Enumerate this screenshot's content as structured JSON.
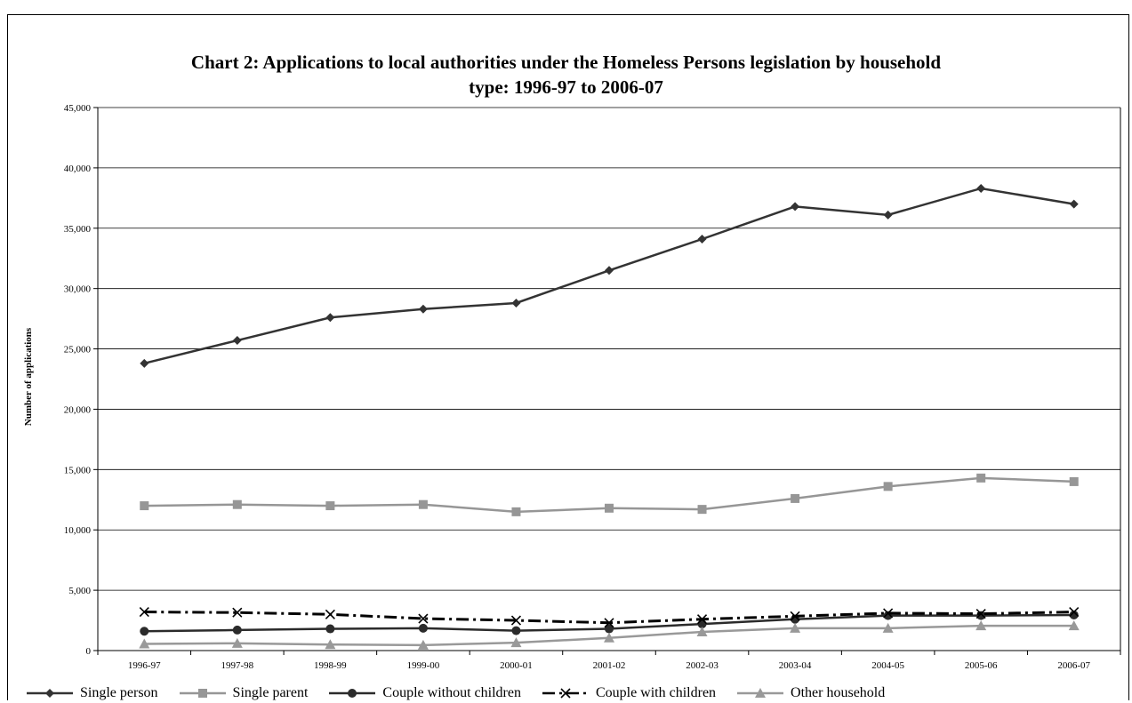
{
  "chart_data": {
    "type": "line",
    "title_line1": "Chart 2: Applications to local authorities under the Homeless Persons legislation by household",
    "title_line2": "type: 1996-97 to 2006-07",
    "xlabel": "",
    "ylabel": "Number of applications",
    "ylim": [
      0,
      45000
    ],
    "yticks": [
      0,
      5000,
      10000,
      15000,
      20000,
      25000,
      30000,
      35000,
      40000,
      45000
    ],
    "ytick_labels": [
      "0",
      "5,000",
      "10,000",
      "15,000",
      "20,000",
      "25,000",
      "30,000",
      "35,000",
      "40,000",
      "45,000"
    ],
    "grid": true,
    "legend_position": "bottom",
    "categories": [
      "1996-97",
      "1997-98",
      "1998-99",
      "1999-00",
      "2000-01",
      "2001-02",
      "2002-03",
      "2003-04",
      "2004-05",
      "2005-06",
      "2006-07"
    ],
    "series": [
      {
        "name": "Single person",
        "color": "#333333",
        "marker": "diamond",
        "dash": "solid",
        "values": [
          23800,
          25700,
          27600,
          28300,
          28800,
          31500,
          34100,
          36800,
          36100,
          38300,
          37000
        ]
      },
      {
        "name": "Single parent",
        "color": "#969696",
        "marker": "square",
        "dash": "solid",
        "values": [
          12000,
          12100,
          12000,
          12100,
          11500,
          11800,
          11700,
          12600,
          13600,
          14300,
          14000
        ]
      },
      {
        "name": "Couple without children",
        "color": "#2b2b2b",
        "marker": "circle",
        "dash": "solid",
        "values": [
          1600,
          1700,
          1800,
          1850,
          1650,
          1800,
          2200,
          2600,
          2900,
          2900,
          2950
        ]
      },
      {
        "name": "Couple with children",
        "color": "#000000",
        "marker": "x",
        "dash": "dashdot",
        "values": [
          3200,
          3150,
          3000,
          2650,
          2500,
          2300,
          2600,
          2850,
          3100,
          3050,
          3200
        ]
      },
      {
        "name": "Other household",
        "color": "#999999",
        "marker": "triangle",
        "dash": "solid",
        "values": [
          550,
          600,
          500,
          450,
          650,
          1050,
          1550,
          1850,
          1850,
          2050,
          2050
        ]
      }
    ]
  }
}
